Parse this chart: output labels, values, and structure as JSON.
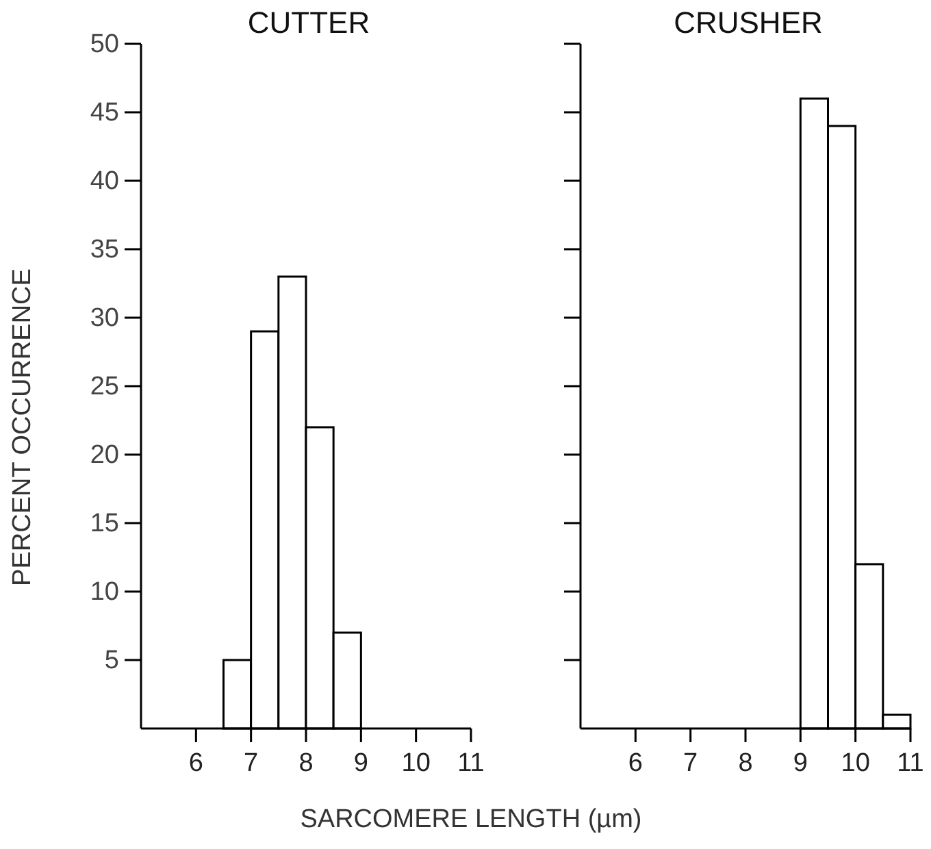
{
  "chart_data": [
    {
      "type": "histogram",
      "title": "CUTTER",
      "ylabel": "PERCENT OCCURRENCE",
      "xlabel": "SARCOMERE LENGTH (µm)",
      "bins": [
        6.5,
        7,
        7.5,
        8,
        8.5,
        9
      ],
      "values": [
        5,
        29,
        33,
        22,
        7
      ],
      "color": "#ffffff",
      "xlim": [
        5,
        11
      ],
      "xticks": [
        6,
        7,
        8,
        9,
        10,
        11
      ],
      "ylim": [
        0,
        50
      ],
      "yticks": [
        5,
        10,
        15,
        20,
        25,
        30,
        35,
        40,
        45,
        50
      ]
    },
    {
      "type": "histogram",
      "title": "CRUSHER",
      "bins": [
        9,
        9.5,
        10,
        10.5,
        11
      ],
      "values": [
        46,
        44,
        12,
        1
      ],
      "color": "#ffffff",
      "xlim": [
        5,
        11
      ],
      "xticks": [
        6,
        7,
        8,
        9,
        10,
        11
      ],
      "ylim": [
        0,
        50
      ],
      "yticks": [
        5,
        10,
        15,
        20,
        25,
        30,
        35,
        40,
        45,
        50
      ],
      "tick_labels": "x"
    }
  ]
}
